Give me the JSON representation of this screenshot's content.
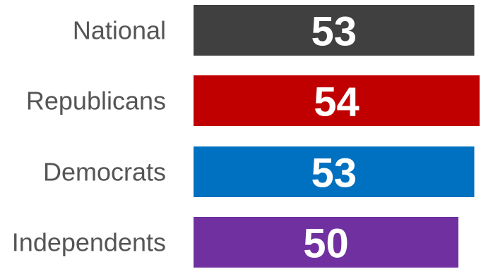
{
  "chart_data": {
    "type": "bar",
    "orientation": "horizontal",
    "categories": [
      "National",
      "Republicans",
      "Democrats",
      "Independents"
    ],
    "values": [
      53,
      54,
      53,
      50
    ],
    "colors": [
      "#404040",
      "#C00000",
      "#0070C0",
      "#7030A0"
    ],
    "value_label_color": "#ffffff",
    "category_label_color": "#555555",
    "xlim": [
      0,
      54
    ],
    "title": "",
    "xlabel": "",
    "ylabel": "",
    "grid": false,
    "legend": "none"
  }
}
